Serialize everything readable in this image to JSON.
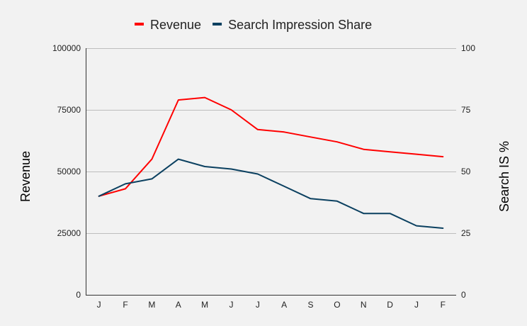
{
  "chart_data": {
    "type": "line",
    "background": "#f2f2f2",
    "categories": [
      "J",
      "F",
      "M",
      "A",
      "M",
      "J",
      "J",
      "A",
      "S",
      "O",
      "N",
      "D",
      "J",
      "F"
    ],
    "series": [
      {
        "name": "Revenue",
        "axis": "left",
        "color": "#ff0000",
        "values": [
          40000,
          43000,
          55000,
          79000,
          80000,
          75000,
          67000,
          66000,
          64000,
          62000,
          59000,
          58000,
          57000,
          56000
        ]
      },
      {
        "name": "Search Impression Share",
        "axis": "right",
        "color": "#0b4060",
        "values": [
          40,
          45,
          47,
          55,
          52,
          51,
          49,
          44,
          39,
          38,
          33,
          33,
          28,
          27
        ]
      }
    ],
    "left_axis": {
      "label": "Revenue",
      "ylim": [
        0,
        100000
      ],
      "ticks": [
        0,
        25000,
        50000,
        75000,
        100000
      ],
      "tick_labels": [
        "0",
        "25000",
        "50000",
        "75000",
        "100000"
      ]
    },
    "right_axis": {
      "label": "Search IS %",
      "ylim": [
        0,
        100
      ],
      "ticks": [
        0,
        25,
        50,
        75,
        100
      ],
      "tick_labels": [
        "0",
        "25",
        "50",
        "75",
        "100"
      ]
    },
    "grid": true,
    "legend_position": "top-center"
  }
}
